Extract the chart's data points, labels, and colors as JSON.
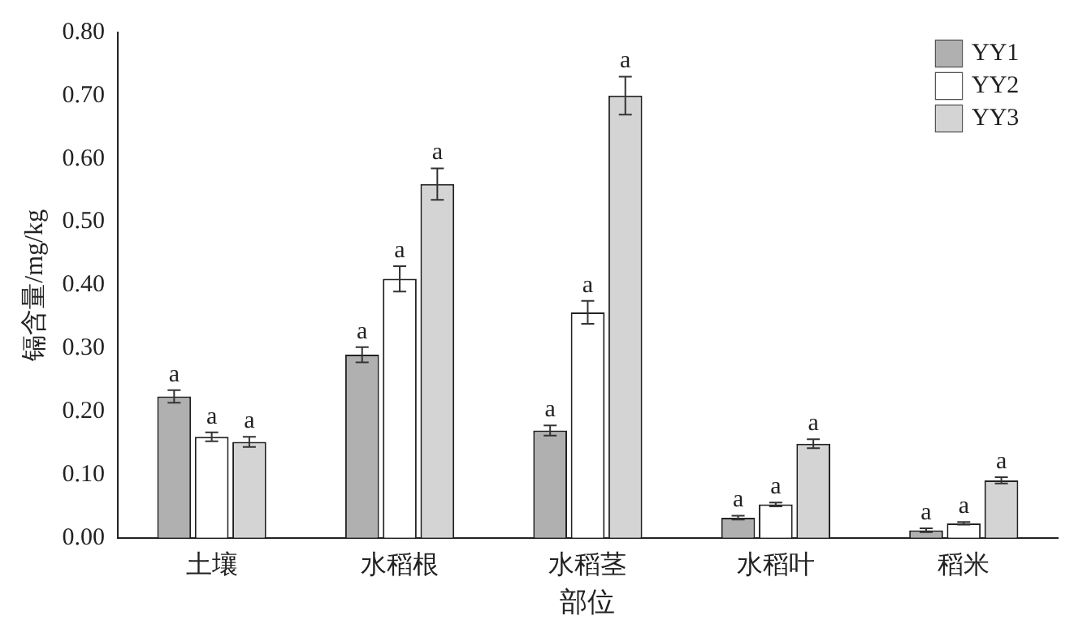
{
  "chart_data": {
    "type": "bar",
    "xlabel": "部位",
    "ylabel": "镉含量/mg/kg",
    "categories": [
      "土壤",
      "水稻根",
      "水稻茎",
      "水稻叶",
      "稻米"
    ],
    "series": [
      {
        "name": "YY1",
        "color": "#b0b0b0",
        "values": [
          0.224,
          0.29,
          0.17,
          0.032,
          0.012
        ],
        "errors": [
          0.01,
          0.012,
          0.008,
          0.003,
          0.003
        ]
      },
      {
        "name": "YY2",
        "color": "#ffffff",
        "values": [
          0.16,
          0.41,
          0.357,
          0.053,
          0.023
        ],
        "errors": [
          0.007,
          0.02,
          0.018,
          0.003,
          0.002
        ]
      },
      {
        "name": "YY3",
        "color": "#d4d4d4",
        "values": [
          0.152,
          0.56,
          0.7,
          0.149,
          0.091
        ],
        "errors": [
          0.008,
          0.025,
          0.03,
          0.007,
          0.005
        ]
      }
    ],
    "ylim": [
      0,
      0.8
    ],
    "yticks": [
      {
        "value": 0,
        "label": "0.00"
      },
      {
        "value": 0.1,
        "label": "0.10"
      },
      {
        "value": 0.2,
        "label": "0.20"
      },
      {
        "value": 0.3,
        "label": "0.30"
      },
      {
        "value": 0.4,
        "label": "0.40"
      },
      {
        "value": 0.5,
        "label": "0.50"
      },
      {
        "value": 0.6,
        "label": "0.60"
      },
      {
        "value": 0.7,
        "label": "0.70"
      },
      {
        "value": 0.8,
        "label": "0.80"
      }
    ],
    "annotations": [
      "a",
      "a",
      "a",
      "a",
      "a",
      "a",
      "a",
      "a",
      "a",
      "a",
      "a",
      "a",
      "a",
      "a",
      "a"
    ],
    "legend": "top right",
    "grid": false
  }
}
